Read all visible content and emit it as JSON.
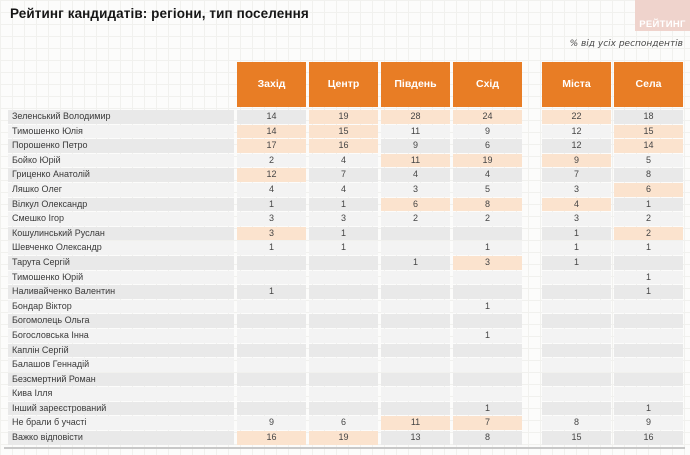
{
  "page": {
    "title": "Рейтинг кандидатів: регіони, тип поселення",
    "subtitle": "% від усіх респондентів",
    "logo_text": "РЕЙТИНГ"
  },
  "colors": {
    "accent_orange": "#e87d25",
    "highlight_peach": "#fbe3ce",
    "row_stripe_dark": "#e9e9e9",
    "row_stripe_light": "#f3f3f3",
    "logo_pink": "#efd3cc"
  },
  "chart_data": {
    "type": "table",
    "title": "Рейтинг кандидатів: регіони, тип поселення",
    "unit": "% від усіх респондентів",
    "columns": [
      "Захід",
      "Центр",
      "Південь",
      "Схід",
      "Міста",
      "Села"
    ],
    "region_columns": [
      "Захід",
      "Центр",
      "Південь",
      "Схід"
    ],
    "settlement_columns": [
      "Міста",
      "Села"
    ],
    "rows": [
      {
        "name": "Зеленський Володимир",
        "values": [
          14,
          19,
          28,
          24,
          22,
          18
        ],
        "highlight": [
          false,
          true,
          true,
          true,
          true,
          false
        ]
      },
      {
        "name": "Тимошенко Юлія",
        "values": [
          14,
          15,
          11,
          9,
          12,
          15
        ],
        "highlight": [
          true,
          true,
          false,
          false,
          false,
          true
        ]
      },
      {
        "name": "Порошенко Петро",
        "values": [
          17,
          16,
          9,
          6,
          12,
          14
        ],
        "highlight": [
          true,
          true,
          false,
          false,
          false,
          true
        ]
      },
      {
        "name": "Бойко Юрій",
        "values": [
          2,
          4,
          11,
          19,
          9,
          5
        ],
        "highlight": [
          false,
          false,
          true,
          true,
          true,
          false
        ]
      },
      {
        "name": "Гриценко Анатолій",
        "values": [
          12,
          7,
          4,
          4,
          7,
          8
        ],
        "highlight": [
          true,
          false,
          false,
          false,
          false,
          false
        ]
      },
      {
        "name": "Ляшко Олег",
        "values": [
          4,
          4,
          3,
          5,
          3,
          6
        ],
        "highlight": [
          false,
          false,
          false,
          false,
          false,
          true
        ]
      },
      {
        "name": "Вілкул Олександр",
        "values": [
          1,
          1,
          6,
          8,
          4,
          1
        ],
        "highlight": [
          false,
          false,
          true,
          true,
          true,
          false
        ]
      },
      {
        "name": "Смешко Ігор",
        "values": [
          3,
          3,
          2,
          2,
          3,
          2
        ],
        "highlight": [
          false,
          false,
          false,
          false,
          false,
          false
        ]
      },
      {
        "name": "Кошулинський Руслан",
        "values": [
          3,
          1,
          null,
          null,
          1,
          2
        ],
        "highlight": [
          true,
          false,
          false,
          false,
          false,
          true
        ]
      },
      {
        "name": "Шевченко Олександр",
        "values": [
          1,
          1,
          null,
          1,
          1,
          1
        ],
        "highlight": [
          false,
          false,
          false,
          false,
          false,
          false
        ]
      },
      {
        "name": "Тарута Сергій",
        "values": [
          null,
          null,
          1,
          3,
          1,
          null
        ],
        "highlight": [
          false,
          false,
          false,
          true,
          false,
          false
        ]
      },
      {
        "name": "Тимошенко Юрій",
        "values": [
          null,
          null,
          null,
          null,
          null,
          1
        ],
        "highlight": [
          false,
          false,
          false,
          false,
          false,
          false
        ]
      },
      {
        "name": "Наливайченко Валентин",
        "values": [
          1,
          null,
          null,
          null,
          null,
          1
        ],
        "highlight": [
          false,
          false,
          false,
          false,
          false,
          false
        ]
      },
      {
        "name": "Бондар Віктор",
        "values": [
          null,
          null,
          null,
          1,
          null,
          null
        ],
        "highlight": [
          false,
          false,
          false,
          false,
          false,
          false
        ]
      },
      {
        "name": "Богомолець Ольга",
        "values": [
          null,
          null,
          null,
          null,
          null,
          null
        ],
        "highlight": [
          false,
          false,
          false,
          false,
          false,
          false
        ]
      },
      {
        "name": "Богословська Інна",
        "values": [
          null,
          null,
          null,
          1,
          null,
          null
        ],
        "highlight": [
          false,
          false,
          false,
          false,
          false,
          false
        ]
      },
      {
        "name": "Каплін Сергій",
        "values": [
          null,
          null,
          null,
          null,
          null,
          null
        ],
        "highlight": [
          false,
          false,
          false,
          false,
          false,
          false
        ]
      },
      {
        "name": "Балашов Геннадій",
        "values": [
          null,
          null,
          null,
          null,
          null,
          null
        ],
        "highlight": [
          false,
          false,
          false,
          false,
          false,
          false
        ]
      },
      {
        "name": "Безсмертний Роман",
        "values": [
          null,
          null,
          null,
          null,
          null,
          null
        ],
        "highlight": [
          false,
          false,
          false,
          false,
          false,
          false
        ]
      },
      {
        "name": "Кива Ілля",
        "values": [
          null,
          null,
          null,
          null,
          null,
          null
        ],
        "highlight": [
          false,
          false,
          false,
          false,
          false,
          false
        ]
      },
      {
        "name": "Інший зареєстрований",
        "values": [
          null,
          null,
          null,
          1,
          null,
          1
        ],
        "highlight": [
          false,
          false,
          false,
          false,
          false,
          false
        ]
      },
      {
        "name": "Не брали б участі",
        "values": [
          9,
          6,
          11,
          7,
          8,
          9
        ],
        "highlight": [
          false,
          false,
          true,
          true,
          false,
          false
        ]
      },
      {
        "name": "Важко відповісти",
        "values": [
          16,
          19,
          13,
          8,
          15,
          16
        ],
        "highlight": [
          true,
          true,
          false,
          false,
          false,
          false
        ]
      }
    ]
  }
}
